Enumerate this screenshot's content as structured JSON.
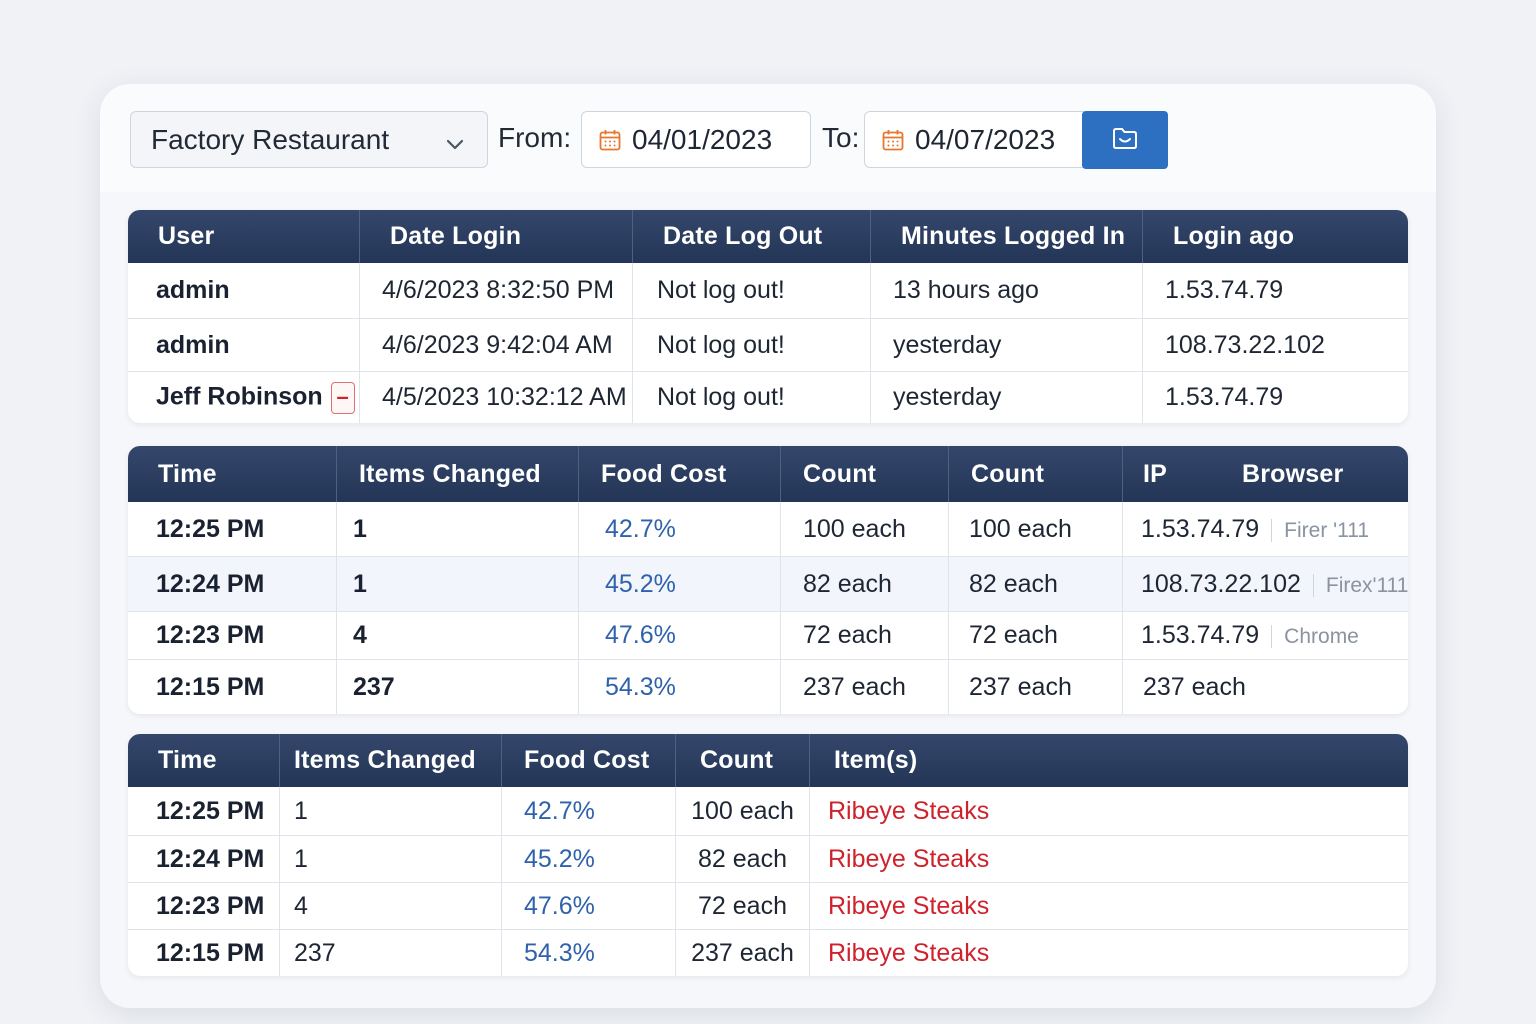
{
  "filters": {
    "restaurant": "Factory Restaurant",
    "from_label": "From:",
    "from_date": "04/01/2023",
    "to_label": "To:",
    "to_date": "04/07/2023"
  },
  "login_table": {
    "headers": [
      "User",
      "Date Login",
      "Date Log Out",
      "Minutes Logged In",
      "Login ago"
    ],
    "rows": [
      {
        "user": "admin",
        "date_login": "4/6/2023 8:32:50 PM",
        "date_logout": "Not log out!",
        "minutes": "13 hours ago",
        "ago": "1.53.74.79"
      },
      {
        "user": "admin",
        "date_login": "4/6/2023 9:42:04 AM",
        "date_logout": "Not log out!",
        "minutes": "yesterday",
        "ago": "108.73.22.102"
      },
      {
        "user": "Jeff Robinson",
        "date_login": "4/5/2023 10:32:12 AM",
        "date_logout": "Not log out!",
        "minutes": "yesterday",
        "ago": "1.53.74.79",
        "badge": "–"
      }
    ]
  },
  "change_table": {
    "headers": [
      "Time",
      "Items Changed",
      "Food Cost",
      "Count",
      "Count",
      "IP",
      "Browser"
    ],
    "rows": [
      {
        "time": "12:25 PM",
        "items": "1",
        "food_cost": "42.7%",
        "count1": "100 each",
        "count2": "100 each",
        "ip": "1.53.74.79",
        "browser": "Firer '111"
      },
      {
        "time": "12:24 PM",
        "items": "1",
        "food_cost": "45.2%",
        "count1": "82 each",
        "count2": "82 each",
        "ip": "108.73.22.102",
        "browser": "Firex'111"
      },
      {
        "time": "12:23 PM",
        "items": "4",
        "food_cost": "47.6%",
        "count1": "72 each",
        "count2": "72 each",
        "ip": "1.53.74.79",
        "browser": "Chrome"
      },
      {
        "time": "12:15 PM",
        "items": "237",
        "food_cost": "54.3%",
        "count1": "237 each",
        "count2": "237 each",
        "ip": "237 each",
        "browser": ""
      }
    ]
  },
  "items_table": {
    "headers": [
      "Time",
      "Items Changed",
      "Food Cost",
      "Count",
      "Item(s)"
    ],
    "rows": [
      {
        "time": "12:25 PM",
        "items": "1",
        "food_cost": "42.7%",
        "count": "100 each",
        "item": "Ribeye Steaks"
      },
      {
        "time": "12:24 PM",
        "items": "1",
        "food_cost": "45.2%",
        "count": "82 each",
        "item": "Ribeye Steaks"
      },
      {
        "time": "12:23 PM",
        "items": "4",
        "food_cost": "47.6%",
        "count": "72 each",
        "item": "Ribeye Steaks"
      },
      {
        "time": "12:15 PM",
        "items": "237",
        "food_cost": "54.3%",
        "count": "237 each",
        "item": "Ribeye Steaks"
      }
    ]
  },
  "icons": {
    "dropdown": "chevron-down-icon",
    "calendar": "calendar-icon",
    "folder": "folder-icon"
  },
  "colors": {
    "header_bg": "#2a3b5d",
    "accent_blue": "#2d6fc0",
    "link_blue": "#2f62ac",
    "item_red": "#d0222c",
    "calendar_orange": "#e8772e"
  }
}
